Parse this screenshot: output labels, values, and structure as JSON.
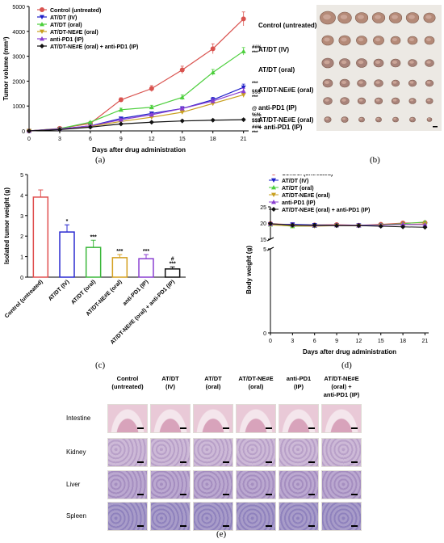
{
  "panel_labels": {
    "a": "(a)",
    "b": "(b)",
    "c": "(c)",
    "d": "(d)",
    "e": "(e)"
  },
  "panel_a": {
    "ylabel": "Tumor volume (mm³)",
    "xlabel": "Days after drug administration",
    "legend": [
      "Control (untreated)",
      "AT/DT (IV)",
      "AT/DT (oral)",
      "AT/DT-NE#E (oral)",
      "anti-PD1 (IP)",
      "AT/DT-NE#E (oral) + anti-PD1 (IP)"
    ],
    "annotations": [
      "###",
      "***",
      "***",
      "§§§",
      "***",
      "@",
      "%%",
      "$$$",
      "###",
      "***"
    ]
  },
  "panel_b": {
    "labels": [
      "Control (untreated)",
      "AT/DT (IV)",
      "AT/DT (oral)",
      "AT/DT-NE#E (oral)",
      "anti-PD1 (IP)",
      "AT/DT-NE#E (oral)",
      "+ anti-PD1 (IP)"
    ]
  },
  "panel_c": {
    "ylabel": "Isolated tumor weight (g)",
    "categories": [
      "Control (untreated)",
      "AT/DT (IV)",
      "AT/DT (oral)",
      "AT/DT-NE#E (oral)",
      "anti-PD1 (IP)",
      "AT/DT-NE#E (oral) + anti-PD1 (IP)"
    ],
    "stars": [
      "",
      "*",
      "***",
      "***",
      "***",
      "***"
    ],
    "hash_label": "#"
  },
  "panel_d": {
    "ylabel": "Body weight (g)",
    "xlabel": "Days after drug administration",
    "legend": [
      "Control (untreated)",
      "AT/DT (IV)",
      "AT/DT (oral)",
      "AT/DT-NE#E (oral)",
      "anti-PD1 (IP)",
      "AT/DT-NE#E (oral) + anti-PD1 (IP)"
    ]
  },
  "panel_e": {
    "columns": [
      [
        "Control",
        "(untreated)"
      ],
      [
        "AT/DT",
        "(IV)"
      ],
      [
        "AT/DT",
        "(oral)"
      ],
      [
        "AT/DT-NE#E",
        "(oral)"
      ],
      [
        "anti-PD1",
        "(IP)"
      ],
      [
        "AT/DT-NE#E",
        "(oral) +",
        "anti-PD1 (IP)"
      ]
    ],
    "rows": [
      "Intestine",
      "Kidney",
      "Liver",
      "Spleen"
    ]
  },
  "chart_data": [
    {
      "type": "line",
      "panel": "a",
      "xlabel": "Days after drug administration",
      "ylabel": "Tumor volume (mm³)",
      "x": [
        0,
        3,
        6,
        9,
        12,
        15,
        18,
        21
      ],
      "xlim": [
        0,
        21.5
      ],
      "ylim": [
        0,
        5000
      ],
      "xticks": [
        0,
        3,
        6,
        9,
        12,
        15,
        18,
        21
      ],
      "yticks": [
        0,
        1000,
        2000,
        3000,
        4000,
        5000
      ],
      "legend_position": "top-left",
      "series": [
        {
          "name": "Control (untreated)",
          "color": "#d9534f",
          "marker": "circle",
          "values": [
            0,
            100,
            300,
            1250,
            1700,
            2450,
            3300,
            4500
          ],
          "err": [
            0,
            20,
            40,
            80,
            120,
            150,
            200,
            280
          ]
        },
        {
          "name": "AT/DT (IV)",
          "color": "#2020c8",
          "marker": "tri-down",
          "values": [
            0,
            80,
            200,
            500,
            700,
            900,
            1250,
            1750
          ],
          "err": [
            0,
            15,
            30,
            50,
            60,
            80,
            100,
            130
          ]
        },
        {
          "name": "AT/DT (oral)",
          "color": "#4ccf3c",
          "marker": "tri-up",
          "values": [
            0,
            90,
            350,
            850,
            950,
            1350,
            2350,
            3200
          ],
          "err": [
            0,
            15,
            30,
            60,
            80,
            100,
            120,
            150
          ]
        },
        {
          "name": "AT/DT-NE#E (oral)",
          "color": "#c9a020",
          "marker": "tri-down",
          "values": [
            0,
            70,
            180,
            380,
            550,
            750,
            1100,
            1450
          ],
          "err": [
            0,
            10,
            20,
            40,
            50,
            60,
            80,
            100
          ]
        },
        {
          "name": "anti-PD1 (IP)",
          "color": "#8a3fd1",
          "marker": "tri-up",
          "values": [
            0,
            80,
            200,
            450,
            650,
            900,
            1200,
            1600
          ],
          "err": [
            0,
            10,
            25,
            40,
            60,
            70,
            90,
            110
          ]
        },
        {
          "name": "AT/DT-NE#E (oral) + anti-PD1 (IP)",
          "color": "#111111",
          "marker": "diamond",
          "values": [
            0,
            50,
            150,
            280,
            350,
            400,
            430,
            450
          ],
          "err": [
            0,
            10,
            20,
            30,
            30,
            35,
            35,
            40
          ]
        }
      ]
    },
    {
      "type": "bar",
      "panel": "c",
      "ylabel": "Isolated tumor weight (g)",
      "categories": [
        "Control (untreated)",
        "AT/DT (IV)",
        "AT/DT (oral)",
        "AT/DT-NE#E (oral)",
        "anti-PD1 (IP)",
        "AT/DT-NE#E (oral) + anti-PD1 (IP)"
      ],
      "values": [
        3.9,
        2.2,
        1.45,
        0.95,
        0.9,
        0.4
      ],
      "err": [
        0.35,
        0.35,
        0.35,
        0.15,
        0.2,
        0.1
      ],
      "colors": [
        "#e05050",
        "#2a2ad0",
        "#3cb83c",
        "#d4a020",
        "#8a3fd1",
        "#111111"
      ],
      "ylim": [
        0,
        5
      ],
      "yticks": [
        0,
        1,
        2,
        3,
        4,
        5
      ]
    },
    {
      "type": "line",
      "panel": "d",
      "xlabel": "Days after drug administration",
      "ylabel": "Body weight (g)",
      "x": [
        0,
        3,
        6,
        9,
        12,
        15,
        18,
        21
      ],
      "xlim": [
        0,
        21.5
      ],
      "ylim_lower": [
        0,
        5
      ],
      "ylim_upper": [
        15,
        25
      ],
      "yticks": [
        0,
        5,
        15,
        20,
        25
      ],
      "axis_break": true,
      "legend_position": "top-left",
      "series": [
        {
          "name": "Control (untreated)",
          "color": "#d9534f",
          "values": [
            19.8,
            19.5,
            19.4,
            19.5,
            19.3,
            19.6,
            20.0,
            20.1
          ]
        },
        {
          "name": "AT/DT (IV)",
          "color": "#2020c8",
          "values": [
            19.6,
            19.6,
            19.4,
            19.3,
            19.3,
            19.4,
            19.5,
            19.6
          ]
        },
        {
          "name": "AT/DT (oral)",
          "color": "#4ccf3c",
          "values": [
            19.5,
            19.0,
            19.1,
            19.3,
            19.2,
            19.4,
            19.8,
            20.3
          ]
        },
        {
          "name": "AT/DT-NE#E (oral)",
          "color": "#c9a020",
          "values": [
            19.4,
            19.1,
            19.0,
            19.2,
            19.1,
            19.3,
            19.5,
            19.7
          ]
        },
        {
          "name": "anti-PD1 (IP)",
          "color": "#8a3fd1",
          "values": [
            19.7,
            19.4,
            19.2,
            19.3,
            19.2,
            19.3,
            19.6,
            19.5
          ]
        },
        {
          "name": "AT/DT-NE#E (oral) + anti-PD1 (IP)",
          "color": "#111111",
          "values": [
            19.8,
            19.3,
            19.3,
            19.2,
            19.2,
            19.0,
            18.8,
            18.7
          ]
        }
      ]
    }
  ]
}
